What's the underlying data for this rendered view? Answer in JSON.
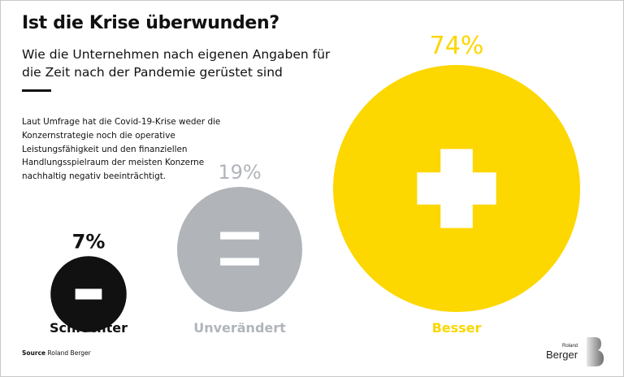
{
  "header": {
    "title": "Ist die Krise überwunden?",
    "subtitle": "Wie die Unternehmen nach eigenen Angaben für die Zeit nach der Pandemie gerüstet sind"
  },
  "description": "Laut Umfrage hat die Covid-19-Krise weder die Konzernstrategie noch die operative Leistungsfähigkeit und den finanziellen Handlungsspielraum der meisten Konzerne nachhaltig negativ beeinträchtigt.",
  "source": {
    "label": "Source",
    "value": "Roland Berger"
  },
  "logo": {
    "small": "Roland",
    "large": "Berger"
  },
  "chart_data": {
    "type": "bubble",
    "title": "Ist die Krise überwunden?",
    "subtitle": "Wie die Unternehmen nach eigenen Angaben für die Zeit nach der Pandemie gerüstet sind",
    "unit": "%",
    "categories": [
      "Schlechter",
      "Unverändert",
      "Besser"
    ],
    "values": [
      7,
      19,
      74
    ],
    "value_labels": [
      "7%",
      "19%",
      "74%"
    ],
    "symbols": [
      "minus",
      "equals",
      "plus"
    ],
    "icons": [
      "minus-icon",
      "equals-icon",
      "plus-icon"
    ],
    "colors": [
      "#111111",
      "#b1b5ba",
      "#fcd700"
    ],
    "label_colors": [
      "#111111",
      "#b1b5ba",
      "#fcd700"
    ],
    "symbol_color": "#ffffff",
    "legend": "none",
    "grid": false
  }
}
